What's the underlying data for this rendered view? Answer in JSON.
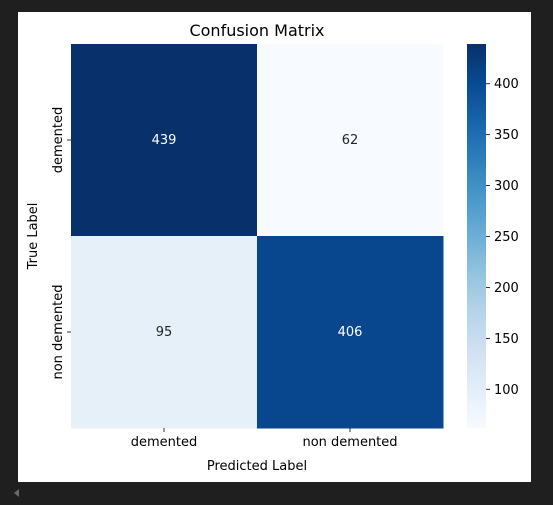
{
  "chart_data": {
    "type": "heatmap",
    "title": "Confusion Matrix",
    "xlabel": "Predicted Label",
    "ylabel": "True Label",
    "x_categories": [
      "demented",
      "non demented"
    ],
    "y_categories": [
      "demented",
      "non demented"
    ],
    "values": [
      [
        439,
        62
      ],
      [
        95,
        406
      ]
    ],
    "colormap": "Blues",
    "colorbar": {
      "min": 62,
      "max": 439,
      "ticks": [
        100,
        150,
        200,
        250,
        300,
        350,
        400
      ]
    },
    "colors": {
      "low": "#f7fbff",
      "high": "#08306b",
      "text_on_dark": "#ffffff",
      "text_on_light": "#262626"
    }
  }
}
